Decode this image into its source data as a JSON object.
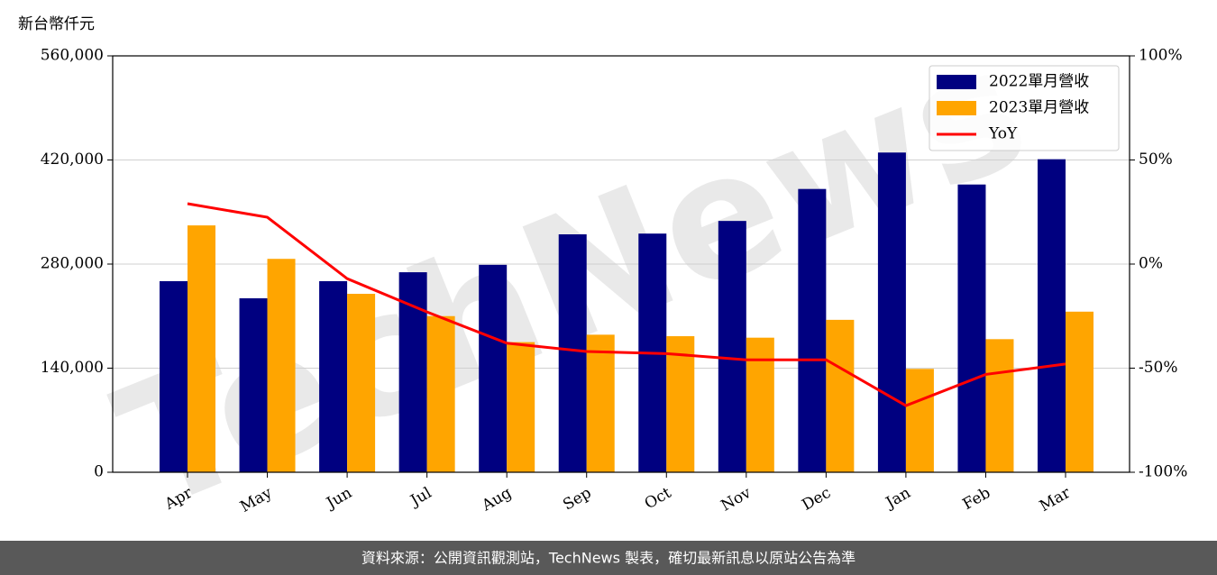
{
  "chart_data": {
    "type": "bar_line",
    "y_axis_label": "新台幣仟元",
    "categories": [
      "Apr",
      "May",
      "Jun",
      "Jul",
      "Aug",
      "Sep",
      "Oct",
      "Nov",
      "Dec",
      "Jan",
      "Feb",
      "Mar"
    ],
    "series": [
      {
        "name": "2022單月營收",
        "color": "#000080",
        "values": [
          257000,
          234000,
          257000,
          269000,
          279000,
          320000,
          321000,
          338000,
          381000,
          430000,
          387000,
          421000
        ]
      },
      {
        "name": "2023單月營收",
        "color": "#ffa500",
        "values": [
          332000,
          287000,
          240000,
          210000,
          175000,
          185000,
          183000,
          181000,
          205000,
          139000,
          179000,
          216000
        ]
      },
      {
        "name": "YoY",
        "color": "#ff0000",
        "axis": "y2",
        "values": [
          29,
          22.5,
          -7,
          -23,
          -38,
          -42,
          -43,
          -46,
          -46,
          -68,
          -53,
          -48
        ]
      }
    ],
    "ylim": [
      0,
      560000
    ],
    "yticks": [
      0,
      {
        "value": 140000,
        "label": "140,000"
      },
      {
        "value": 280000,
        "label": "280,000"
      },
      {
        "value": 420000,
        "label": "420,000"
      },
      {
        "value": 560000,
        "label": "560,000"
      }
    ],
    "y2lim": [
      -100,
      100
    ],
    "y2ticks": [
      {
        "value": -100,
        "label": "-100%"
      },
      {
        "value": -50,
        "label": "-50%"
      },
      {
        "value": 0,
        "label": "0%"
      },
      {
        "value": 50,
        "label": "50%"
      },
      {
        "value": 100,
        "label": "100%"
      }
    ],
    "grid": true,
    "legend": "upper right",
    "watermark": "TechNews",
    "footer": "資料來源：公開資訊觀測站，TechNews 製表，確切最新訊息以原站公告為準"
  }
}
